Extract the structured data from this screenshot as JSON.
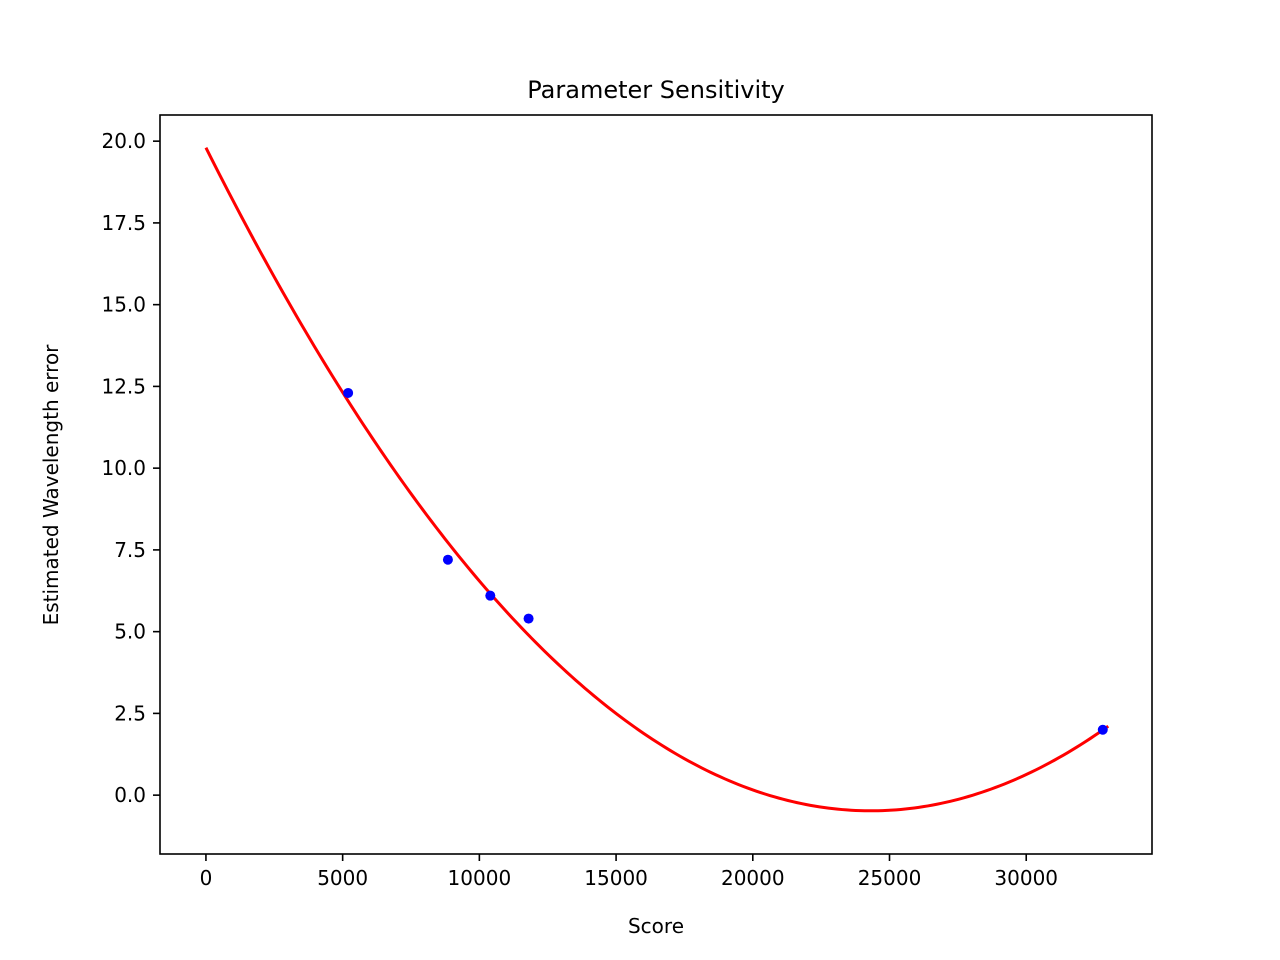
{
  "chart_data": {
    "type": "scatter",
    "title": "Parameter Sensitivity",
    "xlabel": "Score",
    "ylabel": "Estimated Wavelength error",
    "xlim": [
      -1680,
      34600
    ],
    "ylim": [
      -1.8,
      20.8
    ],
    "xticks": [
      0,
      5000,
      10000,
      15000,
      20000,
      25000,
      30000
    ],
    "xtick_labels": [
      "0",
      "5000",
      "10000",
      "15000",
      "20000",
      "25000",
      "30000"
    ],
    "yticks": [
      0.0,
      2.5,
      5.0,
      7.5,
      10.0,
      12.5,
      15.0,
      17.5,
      20.0
    ],
    "ytick_labels": [
      "0.0",
      "2.5",
      "5.0",
      "7.5",
      "10.0",
      "12.5",
      "15.0",
      "17.5",
      "20.0"
    ],
    "grid": false,
    "series": [
      {
        "kind": "scatter",
        "color": "#0000ff",
        "x": [
          5200,
          8850,
          10400,
          11800,
          32800
        ],
        "y": [
          12.3,
          7.2,
          6.1,
          5.4,
          2.0
        ]
      },
      {
        "kind": "line",
        "color": "#ff0000",
        "fit": "quadratic",
        "coefficients": [
          3.43e-08,
          -0.001668,
          19.8
        ],
        "x_range": [
          0,
          33000
        ]
      }
    ]
  }
}
